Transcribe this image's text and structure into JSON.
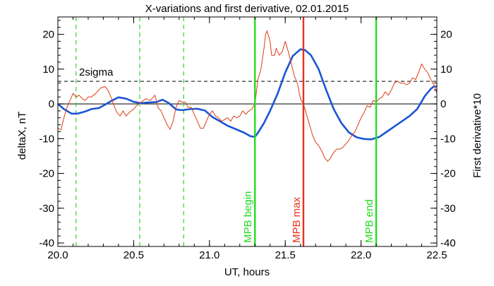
{
  "chart_data": {
    "type": "line",
    "title": "X-variations and first derivative, 02.01.2015",
    "xlabel": "UT, hours",
    "ylabel_left": "deltaX, nT",
    "ylabel_right": "First derivative*10",
    "xlim": [
      20.0,
      22.5
    ],
    "ylim": [
      -41,
      25
    ],
    "x_ticks": [
      {
        "value": 20.0,
        "label": "20.0"
      },
      {
        "value": 20.5,
        "label": "20.5"
      },
      {
        "value": 21.0,
        "label": "21.0"
      },
      {
        "value": 21.5,
        "label": "21.5"
      },
      {
        "value": 22.0,
        "label": "22.0"
      },
      {
        "value": 22.5,
        "label": "22.5"
      }
    ],
    "y_ticks_left": [
      {
        "value": 20,
        "label": "20"
      },
      {
        "value": 10,
        "label": "10"
      },
      {
        "value": 0,
        "label": "0"
      },
      {
        "value": -10,
        "label": "-10"
      },
      {
        "value": -20,
        "label": "-20"
      },
      {
        "value": -30,
        "label": "-30"
      },
      {
        "value": -40,
        "label": "-40"
      }
    ],
    "y_ticks_right": [
      {
        "value": 20,
        "label": "20"
      },
      {
        "value": 10,
        "label": "10"
      },
      {
        "value": 0,
        "label": "0"
      },
      {
        "value": -10,
        "label": "-10"
      },
      {
        "value": -20,
        "label": "-20"
      },
      {
        "value": -30,
        "label": "-30"
      },
      {
        "value": -40,
        "label": "-40"
      }
    ],
    "zero_line": 0,
    "sigma_line": {
      "value": 6.5,
      "label": "2sigma"
    },
    "dashed_green_lines": [
      20.12,
      20.54,
      20.83
    ],
    "markers": [
      {
        "x": 21.3,
        "label": "MPB begin",
        "color": "#22dd22"
      },
      {
        "x": 21.62,
        "label": "MPB max",
        "color": "#e8301a"
      },
      {
        "x": 22.1,
        "label": "MPB end",
        "color": "#22dd22"
      }
    ],
    "series": [
      {
        "name": "deltaX, nT",
        "color": "#1a55d6",
        "points": [
          [
            20.0,
            0.0
          ],
          [
            20.04,
            -1.5
          ],
          [
            20.09,
            -2.8
          ],
          [
            20.13,
            -2.8
          ],
          [
            20.18,
            -2.2
          ],
          [
            20.22,
            -1.5
          ],
          [
            20.27,
            -1.2
          ],
          [
            20.3,
            -0.5
          ],
          [
            20.35,
            0.8
          ],
          [
            20.4,
            1.9
          ],
          [
            20.45,
            1.5
          ],
          [
            20.5,
            0.6
          ],
          [
            20.55,
            0.2
          ],
          [
            20.6,
            0.4
          ],
          [
            20.65,
            0.5
          ],
          [
            20.69,
            1.2
          ],
          [
            20.73,
            0.3
          ],
          [
            20.78,
            -1.6
          ],
          [
            20.82,
            -1.8
          ],
          [
            20.87,
            -1.5
          ],
          [
            20.92,
            -1.4
          ],
          [
            20.97,
            -1.9
          ],
          [
            21.02,
            -3.8
          ],
          [
            21.07,
            -5.0
          ],
          [
            21.12,
            -6.3
          ],
          [
            21.18,
            -7.4
          ],
          [
            21.23,
            -8.3
          ],
          [
            21.27,
            -9.3
          ],
          [
            21.3,
            -9.5
          ],
          [
            21.32,
            -8.3
          ],
          [
            21.36,
            -5.5
          ],
          [
            21.4,
            -2.0
          ],
          [
            21.45,
            3.0
          ],
          [
            21.5,
            9.0
          ],
          [
            21.55,
            13.8
          ],
          [
            21.6,
            15.7
          ],
          [
            21.63,
            15.5
          ],
          [
            21.67,
            14.0
          ],
          [
            21.72,
            10.0
          ],
          [
            21.77,
            4.0
          ],
          [
            21.82,
            -1.5
          ],
          [
            21.87,
            -5.5
          ],
          [
            21.92,
            -8.2
          ],
          [
            21.97,
            -9.6
          ],
          [
            22.02,
            -10.1
          ],
          [
            22.07,
            -10.2
          ],
          [
            22.12,
            -9.5
          ],
          [
            22.17,
            -8.0
          ],
          [
            22.22,
            -6.5
          ],
          [
            22.27,
            -5.0
          ],
          [
            22.32,
            -3.5
          ],
          [
            22.37,
            -1.5
          ],
          [
            22.42,
            2.2
          ],
          [
            22.46,
            4.3
          ],
          [
            22.48,
            5.0
          ],
          [
            22.5,
            5.0
          ]
        ]
      },
      {
        "name": "First derivative*10",
        "color": "#e03a12",
        "points": [
          [
            20.0,
            -7.0
          ],
          [
            20.02,
            -7.5
          ],
          [
            20.04,
            -4.0
          ],
          [
            20.06,
            -1.0
          ],
          [
            20.08,
            1.0
          ],
          [
            20.1,
            3.0
          ],
          [
            20.12,
            2.0
          ],
          [
            20.14,
            2.5
          ],
          [
            20.16,
            1.5
          ],
          [
            20.18,
            1.0
          ],
          [
            20.2,
            2.0
          ],
          [
            20.22,
            2.0
          ],
          [
            20.25,
            3.0
          ],
          [
            20.28,
            4.5
          ],
          [
            20.31,
            5.0
          ],
          [
            20.33,
            4.0
          ],
          [
            20.35,
            2.0
          ],
          [
            20.37,
            -0.5
          ],
          [
            20.39,
            -2.5
          ],
          [
            20.41,
            -3.5
          ],
          [
            20.43,
            -2.0
          ],
          [
            20.45,
            -3.5
          ],
          [
            20.47,
            -2.5
          ],
          [
            20.5,
            -1.5
          ],
          [
            20.52,
            -0.5
          ],
          [
            20.55,
            0.5
          ],
          [
            20.58,
            1.5
          ],
          [
            20.61,
            1.0
          ],
          [
            20.64,
            2.5
          ],
          [
            20.66,
            -1.0
          ],
          [
            20.68,
            -2.0
          ],
          [
            20.7,
            -4.0
          ],
          [
            20.72,
            -6.0
          ],
          [
            20.74,
            -7.3
          ],
          [
            20.76,
            -5.0
          ],
          [
            20.78,
            -1.0
          ],
          [
            20.8,
            1.0
          ],
          [
            20.82,
            0.5
          ],
          [
            20.84,
            0.5
          ],
          [
            20.86,
            -1.0
          ],
          [
            20.88,
            -1.0
          ],
          [
            20.9,
            -3.0
          ],
          [
            20.92,
            -5.0
          ],
          [
            20.94,
            -7.0
          ],
          [
            20.96,
            -7.0
          ],
          [
            20.98,
            -5.0
          ],
          [
            21.0,
            -3.0
          ],
          [
            21.02,
            -2.0
          ],
          [
            21.04,
            -3.5
          ],
          [
            21.06,
            -4.0
          ],
          [
            21.08,
            -5.0
          ],
          [
            21.1,
            -4.5
          ],
          [
            21.12,
            -4.0
          ],
          [
            21.14,
            -5.0
          ],
          [
            21.16,
            -3.5
          ],
          [
            21.18,
            -4.0
          ],
          [
            21.2,
            -3.5
          ],
          [
            21.22,
            -2.0
          ],
          [
            21.24,
            -3.0
          ],
          [
            21.26,
            -2.0
          ],
          [
            21.28,
            -1.5
          ],
          [
            21.3,
            0.0
          ],
          [
            21.31,
            3.5
          ],
          [
            21.32,
            7.0
          ],
          [
            21.34,
            10.0
          ],
          [
            21.36,
            16.0
          ],
          [
            21.37,
            20.0
          ],
          [
            21.38,
            21.0
          ],
          [
            21.4,
            18.0
          ],
          [
            21.41,
            14.0
          ],
          [
            21.43,
            14.0
          ],
          [
            21.44,
            16.0
          ],
          [
            21.46,
            14.0
          ],
          [
            21.48,
            15.0
          ],
          [
            21.5,
            18.0
          ],
          [
            21.52,
            15.0
          ],
          [
            21.54,
            11.5
          ],
          [
            21.56,
            8.0
          ],
          [
            21.58,
            6.0
          ],
          [
            21.6,
            1.5
          ],
          [
            21.62,
            0.0
          ],
          [
            21.64,
            -3.0
          ],
          [
            21.66,
            -6.0
          ],
          [
            21.68,
            -9.0
          ],
          [
            21.7,
            -11.0
          ],
          [
            21.72,
            -12.0
          ],
          [
            21.74,
            -13.5
          ],
          [
            21.76,
            -15.5
          ],
          [
            21.78,
            -16.5
          ],
          [
            21.8,
            -15.5
          ],
          [
            21.82,
            -14.0
          ],
          [
            21.84,
            -13.0
          ],
          [
            21.86,
            -13.0
          ],
          [
            21.88,
            -12.5
          ],
          [
            21.9,
            -11.5
          ],
          [
            21.92,
            -10.5
          ],
          [
            21.94,
            -9.0
          ],
          [
            21.96,
            -8.0
          ],
          [
            21.98,
            -6.0
          ],
          [
            22.0,
            -4.0
          ],
          [
            22.02,
            -2.5
          ],
          [
            22.04,
            -0.5
          ],
          [
            22.06,
            -1.0
          ],
          [
            22.08,
            1.0
          ],
          [
            22.1,
            0.5
          ],
          [
            22.12,
            1.5
          ],
          [
            22.14,
            2.0
          ],
          [
            22.16,
            3.5
          ],
          [
            22.18,
            2.5
          ],
          [
            22.2,
            4.0
          ],
          [
            22.22,
            6.0
          ],
          [
            22.24,
            6.5
          ],
          [
            22.26,
            6.0
          ],
          [
            22.28,
            6.0
          ],
          [
            22.3,
            5.5
          ],
          [
            22.32,
            6.0
          ],
          [
            22.34,
            7.5
          ],
          [
            22.36,
            7.0
          ],
          [
            22.38,
            9.0
          ],
          [
            22.4,
            11.5
          ],
          [
            22.42,
            10.0
          ],
          [
            22.44,
            9.0
          ],
          [
            22.46,
            7.0
          ],
          [
            22.48,
            5.5
          ],
          [
            22.5,
            3.0
          ]
        ]
      }
    ]
  }
}
